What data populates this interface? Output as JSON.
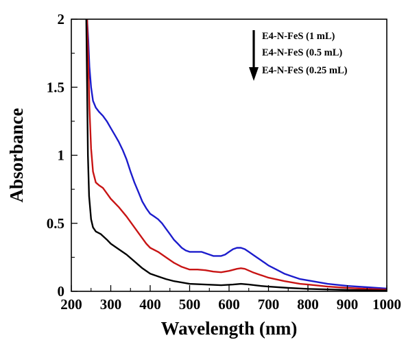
{
  "chart_data": {
    "type": "line",
    "title": "",
    "xlabel": "Wavelength (nm)",
    "ylabel": "Absorbance",
    "xlim": [
      200,
      1000
    ],
    "ylim": [
      0,
      2
    ],
    "x_ticks": [
      200,
      300,
      400,
      500,
      600,
      700,
      800,
      900,
      1000
    ],
    "x_tick_labels": [
      "200",
      "300",
      "400",
      "500",
      "600",
      "700",
      "800",
      "900",
      "1000"
    ],
    "y_ticks": [
      0,
      0.5,
      1,
      1.5,
      2
    ],
    "y_tick_labels": [
      "0",
      "0.5",
      "1",
      "1.5",
      "2"
    ],
    "grid": false,
    "legend": {
      "placement": "top-right",
      "arrow": "down",
      "entries": [
        "E4-N-FeS (1 mL)",
        "E4-N-FeS (0.5 mL)",
        "E4-N-FeS (0.25 mL)"
      ]
    },
    "series": [
      {
        "color": "#1c1ccc",
        "points": [
          [
            240,
            2.0
          ],
          [
            243,
            1.85
          ],
          [
            246,
            1.65
          ],
          [
            250,
            1.5
          ],
          [
            255,
            1.4
          ],
          [
            262,
            1.35
          ],
          [
            270,
            1.32
          ],
          [
            280,
            1.29
          ],
          [
            290,
            1.25
          ],
          [
            300,
            1.2
          ],
          [
            310,
            1.15
          ],
          [
            320,
            1.1
          ],
          [
            330,
            1.04
          ],
          [
            340,
            0.97
          ],
          [
            350,
            0.88
          ],
          [
            360,
            0.8
          ],
          [
            370,
            0.73
          ],
          [
            380,
            0.66
          ],
          [
            390,
            0.61
          ],
          [
            400,
            0.57
          ],
          [
            410,
            0.55
          ],
          [
            420,
            0.53
          ],
          [
            430,
            0.5
          ],
          [
            440,
            0.46
          ],
          [
            450,
            0.42
          ],
          [
            460,
            0.38
          ],
          [
            470,
            0.35
          ],
          [
            480,
            0.32
          ],
          [
            490,
            0.3
          ],
          [
            500,
            0.29
          ],
          [
            520,
            0.29
          ],
          [
            530,
            0.29
          ],
          [
            540,
            0.28
          ],
          [
            550,
            0.27
          ],
          [
            560,
            0.26
          ],
          [
            570,
            0.26
          ],
          [
            580,
            0.26
          ],
          [
            590,
            0.27
          ],
          [
            600,
            0.29
          ],
          [
            610,
            0.31
          ],
          [
            620,
            0.32
          ],
          [
            630,
            0.32
          ],
          [
            640,
            0.31
          ],
          [
            650,
            0.29
          ],
          [
            660,
            0.27
          ],
          [
            670,
            0.25
          ],
          [
            680,
            0.23
          ],
          [
            690,
            0.21
          ],
          [
            700,
            0.19
          ],
          [
            720,
            0.16
          ],
          [
            740,
            0.13
          ],
          [
            760,
            0.11
          ],
          [
            780,
            0.09
          ],
          [
            800,
            0.08
          ],
          [
            850,
            0.055
          ],
          [
            900,
            0.04
          ],
          [
            950,
            0.03
          ],
          [
            1000,
            0.02
          ]
        ]
      },
      {
        "color": "#c81414",
        "points": [
          [
            240,
            2.0
          ],
          [
            243,
            1.7
          ],
          [
            246,
            1.35
          ],
          [
            250,
            1.05
          ],
          [
            255,
            0.88
          ],
          [
            262,
            0.8
          ],
          [
            270,
            0.78
          ],
          [
            280,
            0.76
          ],
          [
            290,
            0.72
          ],
          [
            300,
            0.68
          ],
          [
            320,
            0.62
          ],
          [
            340,
            0.55
          ],
          [
            360,
            0.47
          ],
          [
            380,
            0.39
          ],
          [
            390,
            0.35
          ],
          [
            400,
            0.32
          ],
          [
            420,
            0.29
          ],
          [
            440,
            0.25
          ],
          [
            460,
            0.21
          ],
          [
            480,
            0.18
          ],
          [
            500,
            0.16
          ],
          [
            520,
            0.16
          ],
          [
            540,
            0.155
          ],
          [
            560,
            0.145
          ],
          [
            580,
            0.14
          ],
          [
            600,
            0.15
          ],
          [
            620,
            0.165
          ],
          [
            630,
            0.17
          ],
          [
            640,
            0.165
          ],
          [
            660,
            0.14
          ],
          [
            680,
            0.12
          ],
          [
            700,
            0.1
          ],
          [
            740,
            0.075
          ],
          [
            780,
            0.055
          ],
          [
            800,
            0.05
          ],
          [
            850,
            0.035
          ],
          [
            900,
            0.025
          ],
          [
            950,
            0.018
          ],
          [
            1000,
            0.012
          ]
        ]
      },
      {
        "color": "#000000",
        "points": [
          [
            238,
            2.0
          ],
          [
            240,
            1.5
          ],
          [
            242,
            1.0
          ],
          [
            245,
            0.7
          ],
          [
            250,
            0.53
          ],
          [
            255,
            0.47
          ],
          [
            262,
            0.44
          ],
          [
            275,
            0.42
          ],
          [
            290,
            0.38
          ],
          [
            300,
            0.35
          ],
          [
            320,
            0.31
          ],
          [
            340,
            0.27
          ],
          [
            360,
            0.22
          ],
          [
            380,
            0.17
          ],
          [
            400,
            0.13
          ],
          [
            420,
            0.11
          ],
          [
            440,
            0.09
          ],
          [
            460,
            0.075
          ],
          [
            480,
            0.065
          ],
          [
            500,
            0.055
          ],
          [
            540,
            0.05
          ],
          [
            580,
            0.045
          ],
          [
            610,
            0.05
          ],
          [
            630,
            0.055
          ],
          [
            650,
            0.05
          ],
          [
            680,
            0.04
          ],
          [
            700,
            0.035
          ],
          [
            750,
            0.025
          ],
          [
            800,
            0.018
          ],
          [
            900,
            0.01
          ],
          [
            1000,
            0.006
          ]
        ]
      }
    ]
  }
}
